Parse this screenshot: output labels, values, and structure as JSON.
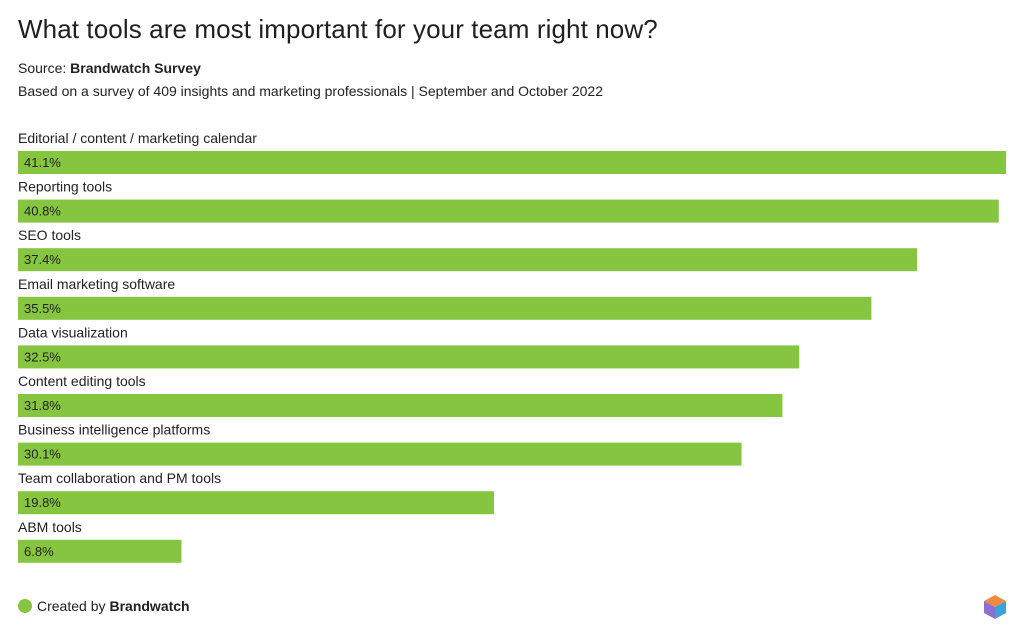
{
  "header": {
    "title": "What tools are most important for your team right now?",
    "source_prefix": "Source:",
    "source_name": "Brandwatch Survey",
    "subtitle": "Based on a survey of 409 insights and marketing professionals | September and October 2022"
  },
  "footer": {
    "created_by": "Created by",
    "brand": "Brandwatch"
  },
  "colors": {
    "bar": "#86c540",
    "label": "#222222"
  },
  "chart_data": {
    "type": "bar",
    "orientation": "horizontal",
    "title": "What tools are most important for your team right now?",
    "subtitle": "Based on a survey of 409 insights and marketing professionals | September and October 2022",
    "categories": [
      "Editorial / content / marketing calendar",
      "Reporting tools",
      "SEO tools",
      "Email marketing software",
      "Data visualization",
      "Content editing tools",
      "Business intelligence platforms",
      "Team collaboration and PM tools",
      "ABM tools"
    ],
    "values": [
      41.1,
      40.8,
      37.4,
      35.5,
      32.5,
      31.8,
      30.1,
      19.8,
      6.8
    ],
    "value_labels": [
      "41.1%",
      "40.8%",
      "37.4%",
      "35.5%",
      "32.5%",
      "31.8%",
      "30.1%",
      "19.8%",
      "6.8%"
    ],
    "unit": "%",
    "xlim": [
      0,
      41.1
    ],
    "grid": false,
    "legend": "none"
  }
}
